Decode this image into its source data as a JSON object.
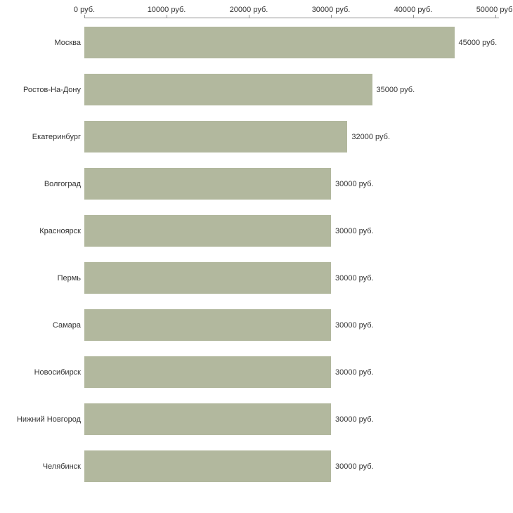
{
  "chart_data": {
    "type": "bar",
    "orientation": "horizontal",
    "title": "",
    "xlabel": "",
    "ylabel": "",
    "categories": [
      "Москва",
      "Ростов-На-Дону",
      "Екатеринбург",
      "Волгоград",
      "Красноярск",
      "Пермь",
      "Самара",
      "Новосибирск",
      "Нижний Новгород",
      "Челябинск"
    ],
    "values": [
      45000,
      35000,
      32000,
      30000,
      30000,
      30000,
      30000,
      30000,
      30000,
      30000
    ],
    "value_labels": [
      "45000 руб.",
      "35000 руб.",
      "32000 руб.",
      "30000 руб.",
      "30000 руб.",
      "30000 руб.",
      "30000 руб.",
      "30000 руб.",
      "30000 руб.",
      "30000 руб."
    ],
    "x_ticks": [
      0,
      10000,
      20000,
      30000,
      40000,
      50000
    ],
    "x_tick_labels": [
      "0 руб.",
      "10000 руб.",
      "20000 руб.",
      "30000 руб.",
      "40000 руб.",
      "50000 руб."
    ],
    "xlim": [
      0,
      50000
    ],
    "axis_position": "top",
    "grid": false,
    "legend": false,
    "bar_color": "#b2b89e",
    "axis_color": "#909090",
    "text_color": "#333333",
    "background_color": "#ffffff"
  }
}
